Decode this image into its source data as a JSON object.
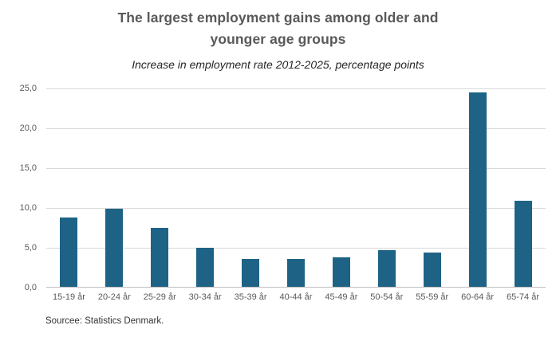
{
  "header": {
    "title_line1": "The largest employment gains among older and",
    "title_line2": "younger age groups",
    "subtitle": "Increase in employment rate 2012-2025, percentage points"
  },
  "footer": {
    "source": "Sourcee: Statistics Denmark."
  },
  "colors": {
    "bar": "#1e6386",
    "gridline": "#d9d9d9",
    "axis_line": "#bfbfbf",
    "title_text": "#595959",
    "axis_text": "#595959"
  },
  "chart_data": {
    "type": "bar",
    "title": "The largest employment gains among older and younger age groups",
    "subtitle": "Increase in employment rate 2012-2025, percentage points",
    "categories": [
      "15-19 år",
      "20-24 år",
      "25-29 år",
      "30-34 år",
      "35-39 år",
      "40-44 år",
      "45-49 år",
      "50-54 år",
      "55-59 år",
      "60-64 år",
      "65-74 år"
    ],
    "values": [
      8.7,
      9.8,
      7.4,
      4.9,
      3.5,
      3.5,
      3.7,
      4.6,
      4.3,
      24.4,
      10.8
    ],
    "xlabel": "",
    "ylabel": "",
    "ylim": [
      0,
      25
    ],
    "ytick_step": 5,
    "ytick_labels": [
      "0,0",
      "5,0",
      "10,0",
      "15,0",
      "20,0",
      "25,0"
    ],
    "grid": true,
    "legend_position": "none",
    "source": "Sourcee: Statistics Denmark."
  }
}
